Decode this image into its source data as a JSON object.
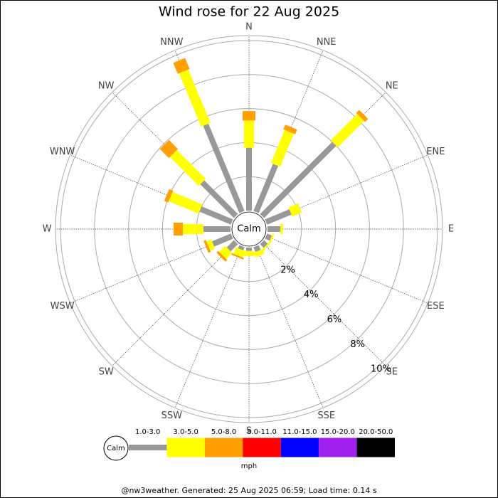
{
  "chart_data": {
    "type": "windrose",
    "title": "Wind rose for 22 Aug 2025",
    "directions": [
      "N",
      "NNE",
      "NE",
      "ENE",
      "E",
      "ESE",
      "SE",
      "SSE",
      "S",
      "SSW",
      "SW",
      "WSW",
      "W",
      "WNW",
      "NW",
      "NNW"
    ],
    "calm_label": "Calm",
    "rlim": [
      0,
      10
    ],
    "rticks": [
      {
        "value": 2,
        "label": "2%"
      },
      {
        "value": 4,
        "label": "4%"
      },
      {
        "value": 6,
        "label": "6%"
      },
      {
        "value": 8,
        "label": "8%"
      },
      {
        "value": 10,
        "label": "10%"
      }
    ],
    "units": "mph",
    "series": [
      {
        "name": "1.0-3.0",
        "color": "#999999",
        "values": [
          3.7,
          3.0,
          6.0,
          1.55,
          0.75,
          0.3,
          0.3,
          0.3,
          0.2,
          0.2,
          0.6,
          1.2,
          1.6,
          2.0,
          2.8,
          5.55
        ]
      },
      {
        "name": "3.0-5.0",
        "color": "#ffff00",
        "values": [
          1.6,
          2.1,
          2.2,
          0.6,
          0.15,
          0.1,
          0.1,
          0.3,
          0.3,
          0.4,
          0.5,
          0.3,
          1.2,
          1.9,
          2.4,
          3.4
        ]
      },
      {
        "name": "5.0-8.0",
        "color": "#ff9f00",
        "values": [
          0.55,
          0.3,
          0.25,
          0,
          0,
          0,
          0,
          0,
          0,
          0.1,
          0.15,
          0.15,
          0.55,
          0.25,
          0.75,
          0.7
        ]
      },
      {
        "name": "8.0-11.0",
        "color": "#ff0000",
        "values": [
          0,
          0,
          0,
          0,
          0,
          0,
          0,
          0,
          0,
          0,
          0,
          0,
          0,
          0,
          0,
          0
        ]
      },
      {
        "name": "11.0-15.0",
        "color": "#0000ff",
        "values": [
          0,
          0,
          0,
          0,
          0,
          0,
          0,
          0,
          0,
          0,
          0,
          0,
          0,
          0,
          0,
          0
        ]
      },
      {
        "name": "15.0-20.0",
        "color": "#a020f0",
        "values": [
          0,
          0,
          0,
          0,
          0,
          0,
          0,
          0,
          0,
          0,
          0,
          0,
          0,
          0,
          0,
          0
        ]
      },
      {
        "name": "20.0-50.0",
        "color": "#000000",
        "values": [
          0,
          0,
          0,
          0,
          0,
          0,
          0,
          0,
          0,
          0,
          0,
          0,
          0,
          0,
          0,
          0
        ]
      }
    ],
    "footer": "@nw3weather. Generated: 25 Aug 2025 06:59; Load time: 0.14 s"
  }
}
